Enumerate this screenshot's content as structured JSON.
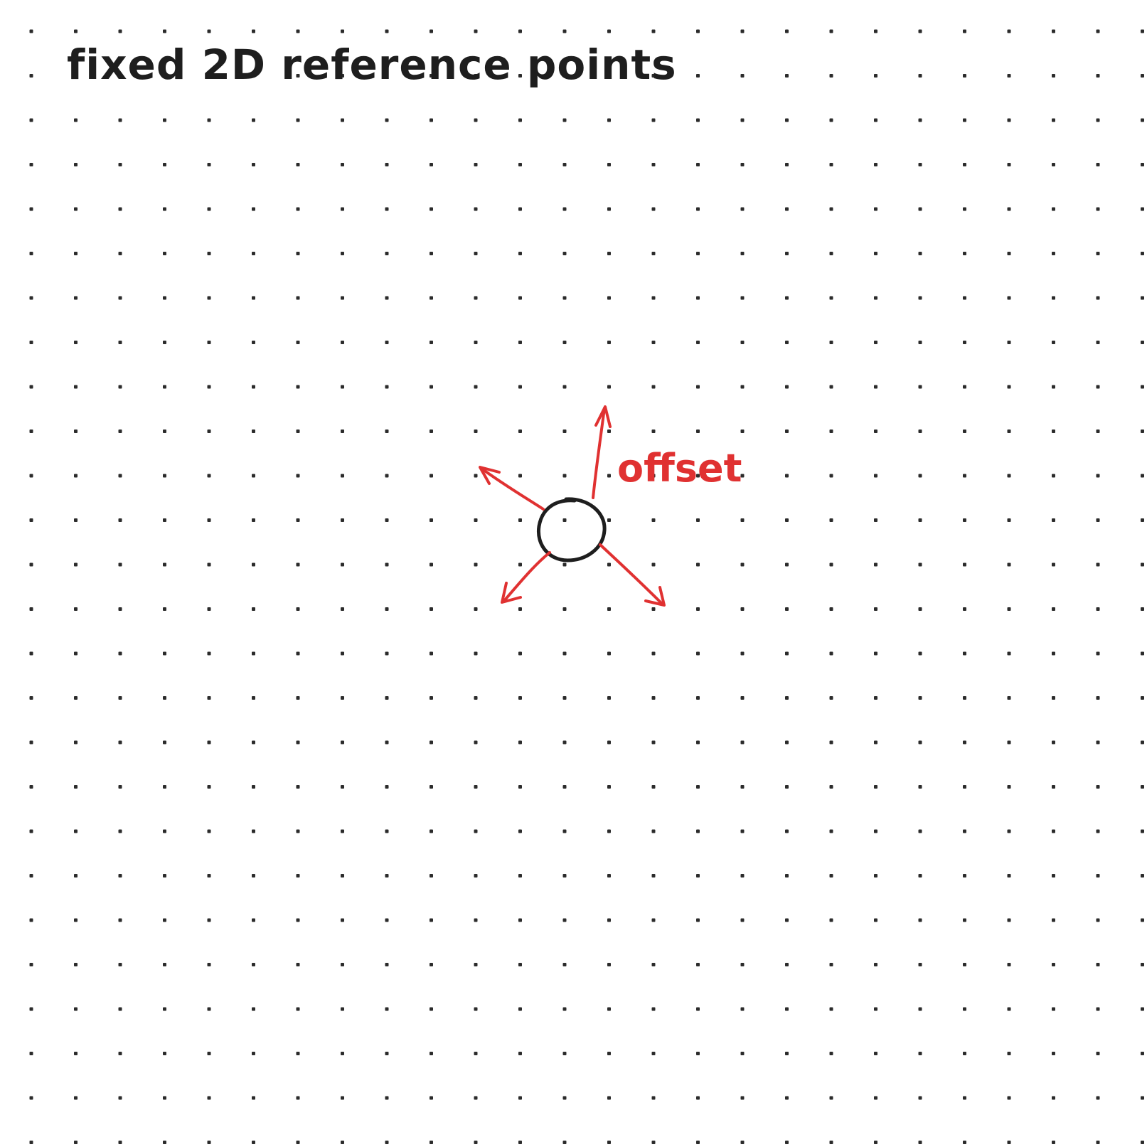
{
  "title": "fixed 2D reference points",
  "offset_label": "offset",
  "colors": {
    "background": "#ffffff",
    "grid_dot": "#2b2b2b",
    "ink": "#1e1e1e",
    "accent": "#e03131"
  },
  "diagram": {
    "center_node": "reference point",
    "offset_arrows": [
      "up",
      "upper-left",
      "lower-left",
      "lower-right"
    ]
  }
}
